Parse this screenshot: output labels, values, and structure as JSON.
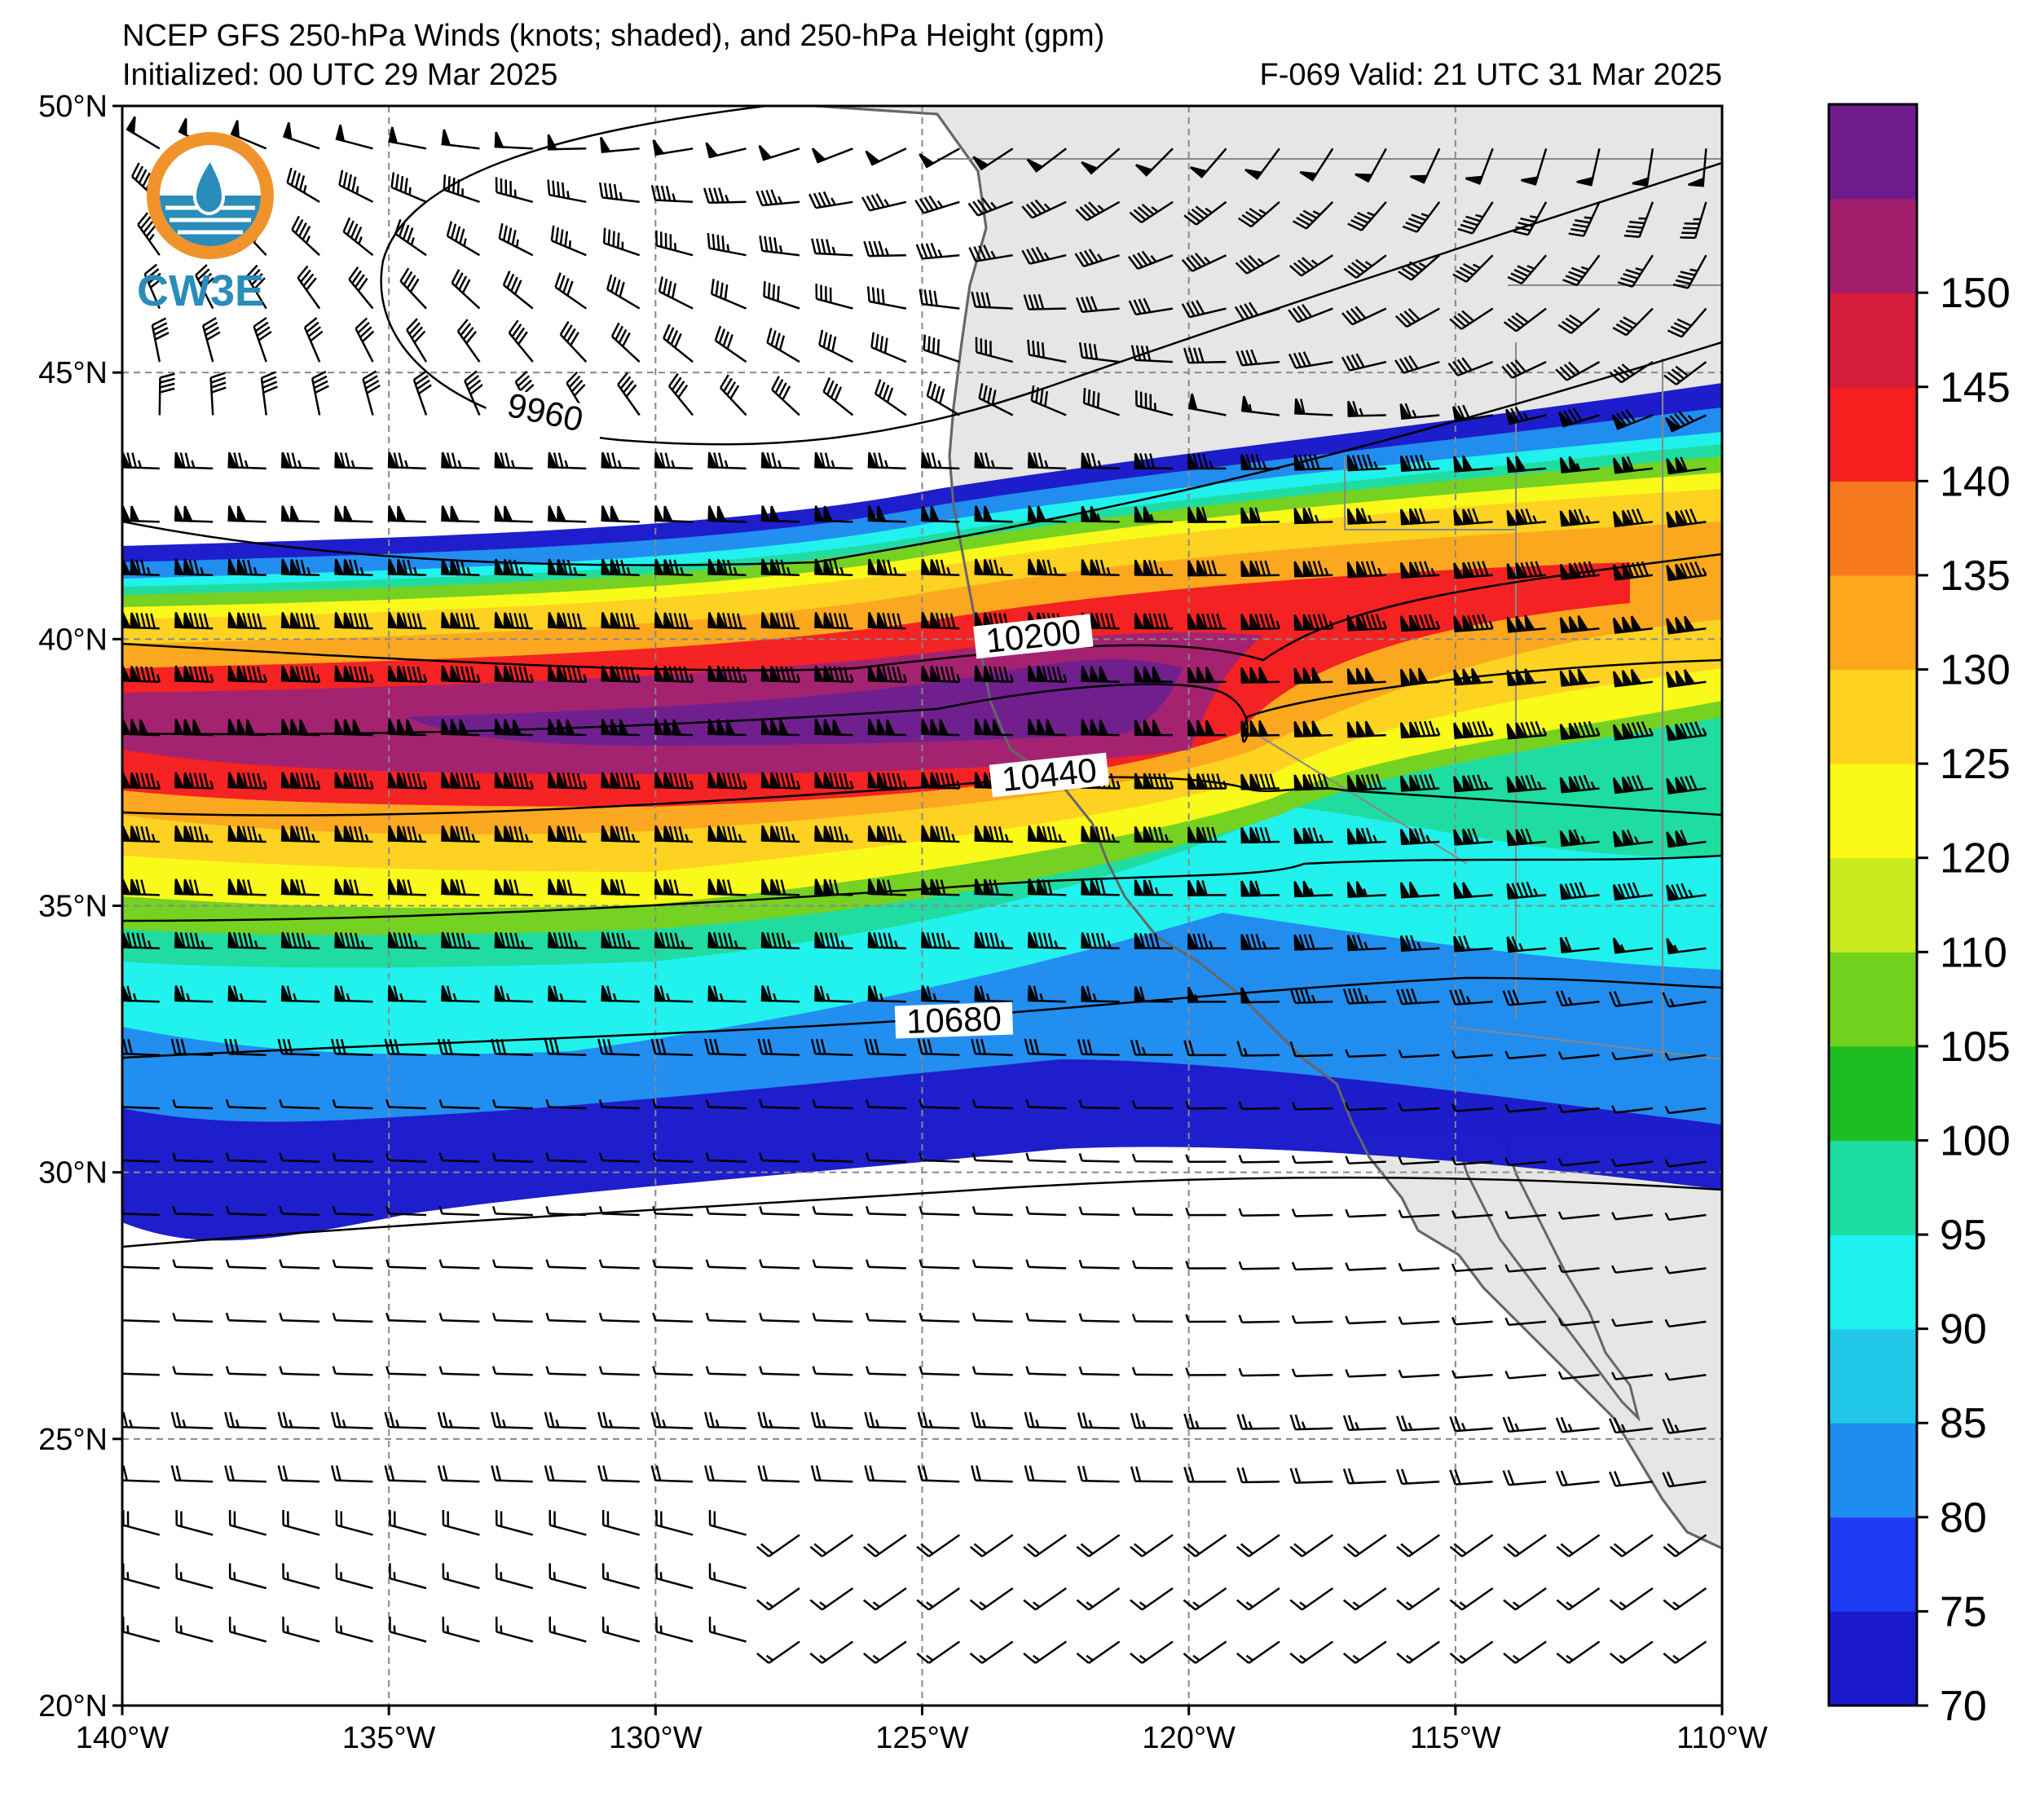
{
  "header": {
    "title": "NCEP GFS 250-hPa Winds (knots; shaded), and 250-hPa Height (gpm)",
    "initialized": "Initialized: 00 UTC 29 Mar 2025",
    "valid": "F-069  Valid: 21 UTC 31 Mar 2025"
  },
  "logo": {
    "text": "CW3E"
  },
  "map": {
    "lon_range": [
      -140,
      -110
    ],
    "lat_range": [
      20,
      50
    ],
    "lon_ticks": [
      {
        "value": -140,
        "label": "140°W"
      },
      {
        "value": -135,
        "label": "135°W"
      },
      {
        "value": -130,
        "label": "130°W"
      },
      {
        "value": -125,
        "label": "125°W"
      },
      {
        "value": -120,
        "label": "120°W"
      },
      {
        "value": -115,
        "label": "115°W"
      },
      {
        "value": -110,
        "label": "110°W"
      }
    ],
    "lat_ticks": [
      {
        "value": 50,
        "label": "50°N"
      },
      {
        "value": 45,
        "label": "45°N"
      },
      {
        "value": 40,
        "label": "40°N"
      },
      {
        "value": 35,
        "label": "35°N"
      },
      {
        "value": 30,
        "label": "30°N"
      },
      {
        "value": 25,
        "label": "25°N"
      },
      {
        "value": 20,
        "label": "20°N"
      }
    ],
    "land_color": "#e6e6e6",
    "coast_color": "#666666",
    "height_contours": [
      {
        "label": "9960",
        "label_lon": -132.1,
        "label_lat": 44.1,
        "label_angle": 12
      },
      {
        "label": "10200",
        "label_lon": -122.9,
        "label_lat": 39.9,
        "label_angle": -6
      },
      {
        "label": "10440",
        "label_lon": -122.6,
        "label_lat": 37.3,
        "label_angle": -6
      },
      {
        "label": "10680",
        "label_lon": -124.4,
        "label_lat": 32.7,
        "label_angle": -2
      }
    ]
  },
  "colorbar": {
    "bounds": [
      70,
      75,
      80,
      85,
      90,
      95,
      100,
      105,
      110,
      120,
      125,
      130,
      135,
      140,
      145,
      150,
      155
    ],
    "colors": [
      "#1a1acb",
      "#1f3af5",
      "#1e8cf0",
      "#22c8ea",
      "#1ef2ee",
      "#1cdca0",
      "#1ebd22",
      "#73d21e",
      "#c8ea1e",
      "#fafa16",
      "#fed21e",
      "#fca71c",
      "#f87a1e",
      "#f51f1f",
      "#d51c3c",
      "#a31f6e",
      "#6e1c8c"
    ],
    "tick_labels": [
      "70",
      "75",
      "80",
      "85",
      "90",
      "95",
      "100",
      "105",
      "110",
      "120",
      "125",
      "130",
      "135",
      "140",
      "145",
      "150"
    ]
  }
}
